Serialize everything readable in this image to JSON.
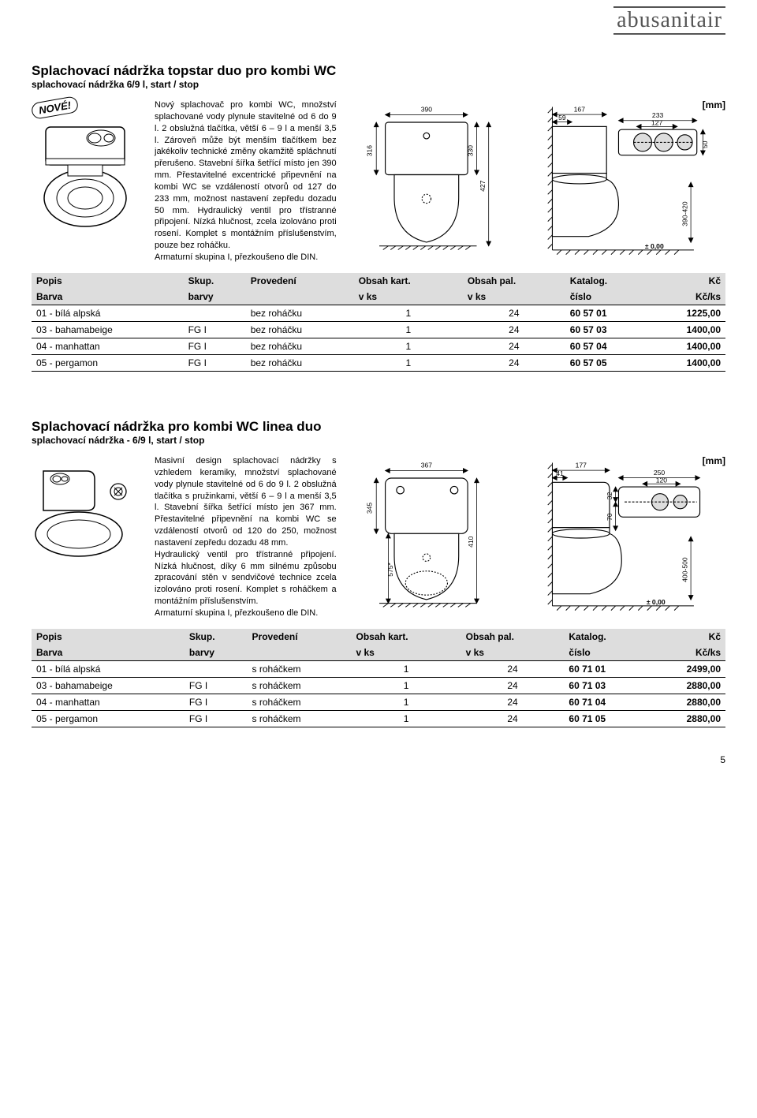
{
  "logo": "abusanitair",
  "page_number": "5",
  "unit_label": "[mm]",
  "badge": "NOVÉ!",
  "section1": {
    "title": "Splachovací nádržka topstar duo pro kombi WC",
    "subtitle": "splachovací nádržka 6/9 l, start / stop",
    "desc": "Nový splachovač pro kombi WC, množství splachované vody plynule stavitelné od 6 do 9 l. 2 obslužná tlačítka, větší 6 – 9 l a menší 3,5 l. Zároveň může být menším tlačítkem bez jakékoliv technické změny okamžitě spláchnutí přerušeno. Stavební šířka šetřící místo jen 390 mm. Přestavitelné excentrické připevnění na kombi WC se vzdáleností otvorů od 127 do 233 mm, možnost nastavení zepředu dozadu 50 mm. Hydraulický ventil pro třístranné připojení. Nízká hlučnost, zcela izolováno proti rosení. Komplet s montážním příslušenstvím, pouze bez roháčku.\nArmaturní skupina I, přezkoušeno dle DIN.",
    "dims": {
      "w_front": "390",
      "h_front": "316",
      "h_side_inner": "330",
      "h_side_outer": "427",
      "top_a": "167",
      "top_b": "59",
      "top_c": "233",
      "top_d": "127",
      "top_h": "50",
      "range": "390-420",
      "datum": "± 0,00"
    }
  },
  "section2": {
    "title": "Splachovací nádržka pro kombi WC linea duo",
    "subtitle": "splachovací nádržka - 6/9 l, start / stop",
    "desc": "Masivní design splachovací nádržky s vzhledem keramiky, množství splachované vody plynule stavitelné od 6 do 9 l. 2 obslužná tlačítka s pružinkami, větší 6 – 9 l a menší 3,5 l. Stavební šířka šetřící místo jen 367 mm. Přestavitelné připevnění na kombi WC se vzdáleností otvorů od 120 do 250, možnost nastavení zepředu dozadu 48 mm.\nHydraulický ventil pro třístranné připojení. Nízká hlučnost, díky 6 mm silnému způsobu zpracování stěn v sendvičové technice zcela izolováno proti rosení. Komplet s roháčkem a montážním příslušenstvím.\nArmaturní skupina I, přezkoušeno dle DIN.",
    "dims": {
      "w_front": "367",
      "h_front": "345",
      "h_mid": "575*",
      "h_side": "410",
      "top_a": "177",
      "top_b": "41",
      "top_c": "250",
      "top_d": "120",
      "top_e": "32",
      "top_f": "70",
      "range": "400-500",
      "datum": "± 0,00"
    }
  },
  "table_headers": {
    "popis": "Popis",
    "barva": "Barva",
    "skup": "Skup.",
    "barvy": "barvy",
    "proved": "Provedení",
    "okart": "Obsah kart.",
    "vks": "v ks",
    "opal": "Obsah pal.",
    "katalog": "Katalog.",
    "cislo": "číslo",
    "kc": "Kč",
    "kcks": "Kč/ks"
  },
  "table1_rows": [
    {
      "barva": "01 - bílá alpská",
      "skup": "",
      "prov": "bez roháčku",
      "kart": "1",
      "pal": "24",
      "kat": "60 57 01",
      "cena": "1225,00"
    },
    {
      "barva": "03 - bahamabeige",
      "skup": "FG I",
      "prov": "bez roháčku",
      "kart": "1",
      "pal": "24",
      "kat": "60 57 03",
      "cena": "1400,00"
    },
    {
      "barva": "04 - manhattan",
      "skup": "FG I",
      "prov": "bez roháčku",
      "kart": "1",
      "pal": "24",
      "kat": "60 57 04",
      "cena": "1400,00"
    },
    {
      "barva": "05 - pergamon",
      "skup": "FG I",
      "prov": "bez roháčku",
      "kart": "1",
      "pal": "24",
      "kat": "60 57 05",
      "cena": "1400,00"
    }
  ],
  "table2_rows": [
    {
      "barva": "01 - bílá alpská",
      "skup": "",
      "prov": "s roháčkem",
      "kart": "1",
      "pal": "24",
      "kat": "60 71 01",
      "cena": "2499,00"
    },
    {
      "barva": "03 - bahamabeige",
      "skup": "FG I",
      "prov": "s roháčkem",
      "kart": "1",
      "pal": "24",
      "kat": "60 71 03",
      "cena": "2880,00"
    },
    {
      "barva": "04 - manhattan",
      "skup": "FG I",
      "prov": "s roháčkem",
      "kart": "1",
      "pal": "24",
      "kat": "60 71 04",
      "cena": "2880,00"
    },
    {
      "barva": "05 - pergamon",
      "skup": "FG I",
      "prov": "s roháčkem",
      "kart": "1",
      "pal": "24",
      "kat": "60 71 05",
      "cena": "2880,00"
    }
  ],
  "colors": {
    "line": "#000000",
    "fill": "#ffffff",
    "header_bg": "#dddddd"
  }
}
